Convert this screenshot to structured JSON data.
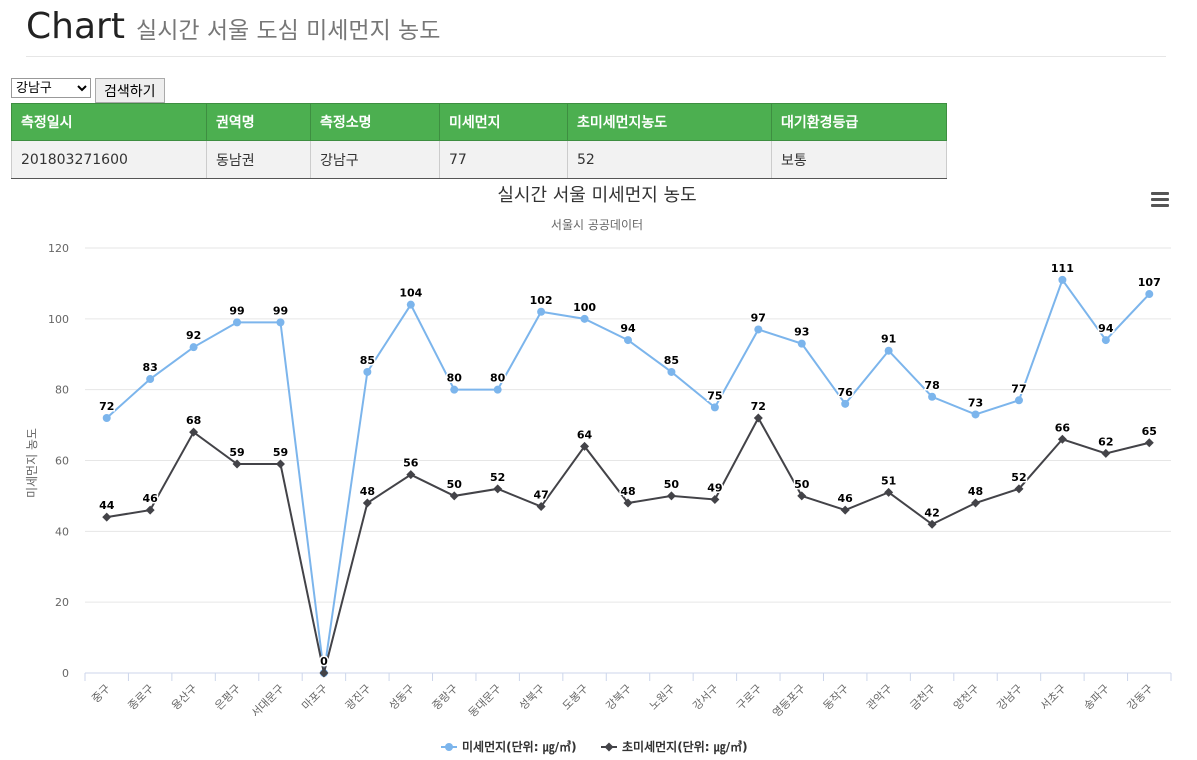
{
  "header": {
    "title": "Chart",
    "subtitle": "실시간 서울 도심 미세먼지 농도"
  },
  "controls": {
    "selected_district": "강남구",
    "search_label": "검색하기"
  },
  "table": {
    "columns": [
      "측정일시",
      "권역명",
      "측정소명",
      "미세먼지",
      "초미세먼지농도",
      "대기환경등급"
    ],
    "rows": [
      [
        "201803271600",
        "동남권",
        "강남구",
        "77",
        "52",
        "보통"
      ]
    ]
  },
  "chart_data": {
    "type": "line",
    "title": "실시간 서울 미세먼지 농도",
    "subtitle": "서울시 공공데이터",
    "ylabel": "미세먼지 농도",
    "xlabel": "",
    "ylim": [
      0,
      120
    ],
    "yticks": [
      0,
      20,
      40,
      60,
      80,
      100,
      120
    ],
    "grid": true,
    "legend": "bottom-center",
    "categories": [
      "중구",
      "종로구",
      "용산구",
      "은평구",
      "서대문구",
      "마포구",
      "광진구",
      "성동구",
      "중랑구",
      "동대문구",
      "성북구",
      "도봉구",
      "강북구",
      "노원구",
      "강서구",
      "구로구",
      "영등포구",
      "동작구",
      "관악구",
      "금천구",
      "양천구",
      "강남구",
      "서초구",
      "송파구",
      "강동구"
    ],
    "series": [
      {
        "name": "미세먼지(단위: ㎍/㎥)",
        "color": "#7cb5ec",
        "marker": "circle",
        "values": [
          72,
          83,
          92,
          99,
          99,
          0,
          85,
          104,
          80,
          80,
          102,
          100,
          94,
          85,
          75,
          97,
          93,
          76,
          91,
          78,
          73,
          77,
          111,
          94,
          107
        ]
      },
      {
        "name": "초미세먼지(단위: ㎍/㎥)",
        "color": "#434348",
        "marker": "diamond",
        "values": [
          44,
          46,
          68,
          59,
          59,
          0,
          48,
          56,
          50,
          52,
          47,
          64,
          48,
          50,
          49,
          72,
          50,
          46,
          51,
          42,
          48,
          52,
          66,
          62,
          65
        ]
      }
    ]
  }
}
